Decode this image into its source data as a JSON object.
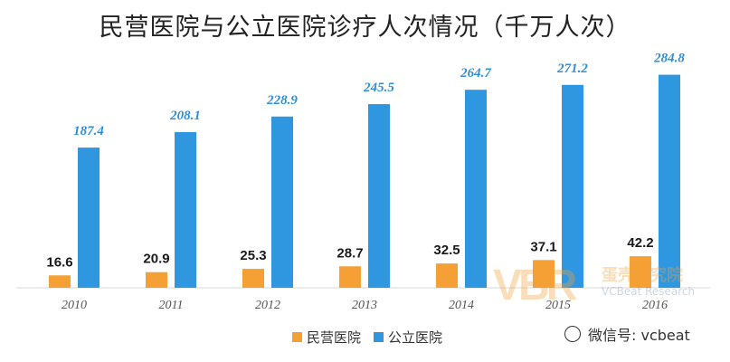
{
  "chart_data": {
    "type": "bar",
    "title": "民营医院与公立医院诊疗人次情况（千万人次）",
    "categories": [
      "2010",
      "2011",
      "2012",
      "2013",
      "2014",
      "2015",
      "2016"
    ],
    "series": [
      {
        "name": "民营医院",
        "color": "#f4a035",
        "values": [
          16.6,
          20.9,
          25.3,
          28.7,
          32.5,
          37.1,
          42.2
        ]
      },
      {
        "name": "公立医院",
        "color": "#2f96e0",
        "values": [
          187.4,
          208.1,
          228.9,
          245.5,
          264.7,
          271.2,
          284.8
        ]
      }
    ],
    "xlabel": "",
    "ylabel": "",
    "ylim": [
      0,
      300
    ],
    "grid": false,
    "legend": "bottom-center"
  },
  "watermark": {
    "logo": "VBR",
    "name": "蛋壳研究院",
    "sub": "VCBeat Research"
  },
  "wechat": {
    "text": "微信号: vcbeat",
    "icon": "wechat-icon"
  }
}
